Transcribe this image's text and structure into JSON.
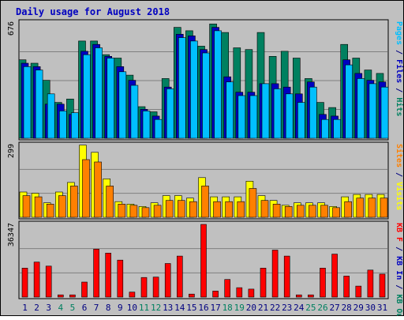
{
  "chart_data": {
    "type": "bar",
    "title": "Daily usage for August 2018",
    "categories": [
      "1",
      "2",
      "3",
      "4",
      "5",
      "6",
      "7",
      "8",
      "9",
      "10",
      "11",
      "12",
      "13",
      "14",
      "15",
      "16",
      "17",
      "18",
      "19",
      "20",
      "21",
      "22",
      "23",
      "24",
      "25",
      "26",
      "27",
      "28",
      "29",
      "30",
      "31"
    ],
    "weekend_days": [
      "4",
      "5",
      "11",
      "12",
      "18",
      "19",
      "25",
      "26"
    ],
    "panels": [
      {
        "id": "hits-files-pages",
        "max_label": "676",
        "ymax": 676,
        "axis_labels": [
          {
            "text": "Pages",
            "color": "#00bfff"
          },
          {
            "text": "/",
            "color": "#000080"
          },
          {
            "text": "Files",
            "color": "#0000c0"
          },
          {
            "text": "/",
            "color": "#000080"
          },
          {
            "text": "Hits",
            "color": "#008060"
          }
        ],
        "series": [
          {
            "name": "Hits",
            "color": "#008060",
            "values": [
              460,
              440,
              340,
              210,
              230,
              570,
              570,
              490,
              470,
              370,
              185,
              155,
              350,
              650,
              630,
              540,
              670,
              620,
              530,
              520,
              620,
              480,
              510,
              470,
              350,
              210,
              180,
              550,
              470,
              400,
              380
            ]
          },
          {
            "name": "Files",
            "color": "#0000c0",
            "values": [
              440,
              420,
              200,
              200,
              140,
              510,
              550,
              480,
              420,
              340,
              170,
              130,
              300,
              610,
              600,
              520,
              650,
              360,
              270,
              270,
              320,
              320,
              300,
              260,
              330,
              140,
              130,
              460,
              380,
              340,
              330
            ]
          },
          {
            "name": "Pages",
            "color": "#00bfff",
            "values": [
              420,
              400,
              260,
              160,
              150,
              490,
              530,
              470,
              390,
              310,
              160,
              110,
              290,
              590,
              570,
              500,
              630,
              330,
              250,
              250,
              320,
              290,
              260,
              210,
              300,
              110,
              110,
              430,
              350,
              320,
              300
            ]
          }
        ]
      },
      {
        "id": "visits-sites",
        "max_label": "299",
        "ymax": 299,
        "axis_labels": [
          {
            "text": "Sites",
            "color": "#ff8000"
          },
          {
            "text": "/",
            "color": "#000080"
          },
          {
            "text": "Visits",
            "color": "#ffff00"
          }
        ],
        "series": [
          {
            "name": "Visits",
            "color": "#ffff00",
            "values": [
              105,
              100,
              60,
              105,
              145,
              300,
              270,
              160,
              65,
              55,
              45,
              60,
              90,
              90,
              80,
              165,
              85,
              85,
              85,
              150,
              90,
              70,
              50,
              60,
              60,
              60,
              45,
              85,
              95,
              95,
              95
            ]
          },
          {
            "name": "Sites",
            "color": "#ff8000",
            "values": [
              90,
              85,
              55,
              90,
              130,
              240,
              230,
              130,
              55,
              50,
              40,
              50,
              70,
              70,
              65,
              130,
              65,
              65,
              65,
              120,
              70,
              55,
              45,
              50,
              50,
              50,
              40,
              65,
              80,
              80,
              80
            ]
          }
        ]
      },
      {
        "id": "kbf-kbin-kbout",
        "max_label": "36347",
        "ymax": 36347,
        "axis_labels": [
          {
            "text": "KB F",
            "color": "#ff0000"
          },
          {
            "text": "/",
            "color": "#000080"
          },
          {
            "text": "KB In",
            "color": "#0000c0"
          },
          {
            "text": "/",
            "color": "#000080"
          },
          {
            "text": "KB Out",
            "color": "#008060"
          }
        ],
        "series": [
          {
            "name": "KB F",
            "color": "#ff0000",
            "values": [
              14500,
              17500,
              15500,
              1100,
              1100,
              7500,
              24000,
              22000,
              18500,
              2500,
              9800,
              10000,
              16800,
              20500,
              1500,
              36347,
              3000,
              8800,
              4700,
              4000,
              14500,
              23500,
              20500,
              1100,
              1100,
              14500,
              21500,
              10500,
              5500,
              13500,
              11500
            ]
          }
        ]
      }
    ],
    "style": {
      "frame_bg": "#c0c0c0",
      "plot_bg": "#c0c0c0",
      "title_color": "#0000c0",
      "axis_text_color": "#000000",
      "weekday_color": "#000080",
      "weekend_color": "#008060",
      "grid_color": "#808080",
      "border_color": "#000000"
    }
  }
}
